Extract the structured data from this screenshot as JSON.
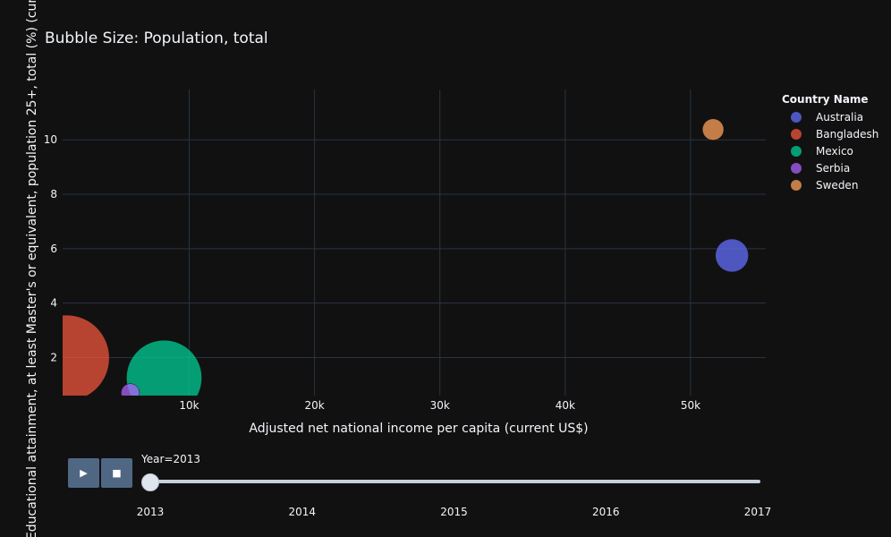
{
  "title": "Bubble Size: Population, total",
  "legend": {
    "title": "Country Name"
  },
  "controls": {
    "play_icon": "play-icon",
    "stop_icon": "stop-icon",
    "play_glyph": "▶",
    "stop_glyph": "■"
  },
  "slider": {
    "current_label": "Year=2013",
    "ticks": [
      "2013",
      "2014",
      "2015",
      "2016",
      "2017"
    ],
    "current_index": 0
  },
  "chart_data": {
    "type": "scatter",
    "title": "Bubble Size: Population, total",
    "xlabel": "Adjusted net national income per capita (current US$)",
    "ylabel": "Educational attainment, at least Master's or equivalent, population 25+, total (%) (cumulative)",
    "xlim": [
      -100,
      56000
    ],
    "ylim": [
      0.6,
      11.85
    ],
    "x_ticks": [
      10000,
      20000,
      30000,
      40000,
      50000
    ],
    "x_tick_labels": [
      "10k",
      "20k",
      "30k",
      "40k",
      "50k"
    ],
    "y_ticks": [
      2,
      4,
      6,
      8,
      10
    ],
    "y_tick_labels": [
      "2",
      "4",
      "6",
      "8",
      "10"
    ],
    "grid": true,
    "legend_position": "right",
    "series": [
      {
        "name": "Australia",
        "color": "#636efa",
        "x": 53300,
        "y": 5.75,
        "population": 23100000
      },
      {
        "name": "Bangladesh",
        "color": "#ef553b",
        "x": 200,
        "y": 1.98,
        "population": 156000000
      },
      {
        "name": "Mexico",
        "color": "#00cc96",
        "x": 8000,
        "y": 1.25,
        "population": 120000000
      },
      {
        "name": "Serbia",
        "color": "#ab63fa",
        "x": 5300,
        "y": 0.7,
        "population": 7160000
      },
      {
        "name": "Sweden",
        "color": "#ffa15a",
        "x": 51800,
        "y": 10.38,
        "population": 9600000
      }
    ]
  }
}
